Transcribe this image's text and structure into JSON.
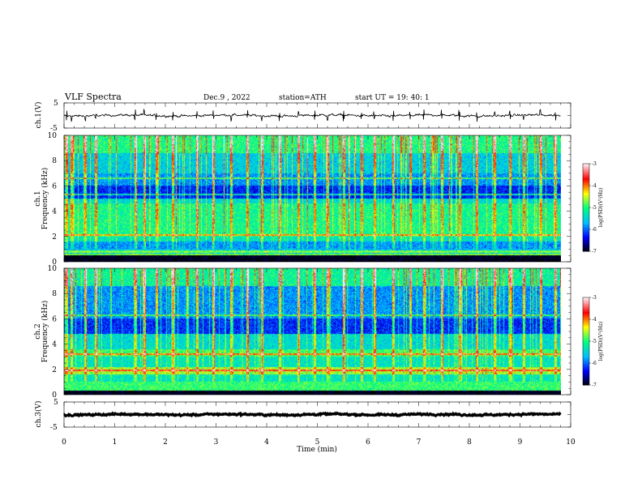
{
  "header": {
    "title": "VLF  Spectra",
    "date": "Dec.9  , 2022",
    "station": "station=ATH",
    "start": "start  UT  =    19: 40: 1"
  },
  "colors": {
    "axis": "#000000",
    "background": "#ffffff",
    "waveform": "#000000"
  },
  "chart_data": [
    {
      "type": "line",
      "panel": "ch1-waveform",
      "ylabel": "ch.1(V)",
      "ylim": [
        -5,
        5
      ],
      "yticks": [
        "5",
        "-5"
      ],
      "xlim": [
        0,
        10
      ],
      "x_end": 9.8,
      "baseline": 0,
      "amplitude_typical": 0.4,
      "spike_times": [
        0.05,
        0.15,
        0.42,
        0.62,
        1.4,
        1.58,
        1.82,
        2.15,
        2.62,
        2.95,
        3.3,
        3.62,
        3.9,
        4.25,
        4.63,
        4.95,
        5.2,
        5.52,
        5.87,
        6.12,
        6.5,
        6.83,
        7.1,
        7.45,
        7.8,
        8.15,
        8.5,
        8.8,
        9.07,
        9.4,
        9.7
      ]
    },
    {
      "type": "heatmap",
      "panel": "ch1-spectrogram",
      "ylabel": "ch.1\nFrequency (kHz)",
      "ylim": [
        0,
        10
      ],
      "yticks": [
        "0",
        "2",
        "4",
        "6",
        "8",
        "10"
      ],
      "xlim": [
        0,
        10
      ],
      "x_end": 9.8,
      "colorbar": {
        "label": "log(PSD)(V²/Hz)",
        "range": [
          -7,
          -3
        ],
        "ticks": [
          "-3",
          "-4",
          "-5",
          "-6",
          "-7"
        ],
        "colors": [
          "#000000",
          "#0000ff",
          "#00c0ff",
          "#00ff80",
          "#ffff00",
          "#ff0000",
          "#ffe8f0"
        ]
      },
      "bands": [
        {
          "f": [
            0,
            0.5
          ],
          "level": -7.0
        },
        {
          "f": [
            0.5,
            1.0
          ],
          "level": -5.6
        },
        {
          "f": [
            1.0,
            1.6
          ],
          "level": -5.8
        },
        {
          "f": [
            1.6,
            2.0
          ],
          "level": -5.3
        },
        {
          "f": [
            2.0,
            4.6
          ],
          "level": -5.05
        },
        {
          "f": [
            4.6,
            5.0
          ],
          "level": -5.4
        },
        {
          "f": [
            5.0,
            6.0
          ],
          "level": -6.25
        },
        {
          "f": [
            6.0,
            7.0
          ],
          "level": -5.8
        },
        {
          "f": [
            7.0,
            8.6
          ],
          "level": -5.5
        },
        {
          "f": [
            8.6,
            10.0
          ],
          "level": -5.0
        }
      ],
      "tones_kHz": [
        0.6,
        0.8,
        2.1,
        5.3,
        6.6
      ],
      "sferic_times": [
        0.05,
        0.15,
        0.42,
        0.62,
        1.4,
        1.58,
        1.82,
        2.15,
        2.62,
        2.95,
        3.3,
        3.62,
        3.9,
        4.25,
        4.63,
        4.95,
        5.2,
        5.52,
        5.87,
        6.12,
        6.5,
        6.83,
        7.1,
        7.45,
        7.8,
        8.15,
        8.5,
        8.8,
        9.07,
        9.4,
        9.7
      ]
    },
    {
      "type": "heatmap",
      "panel": "ch2-spectrogram",
      "ylabel": "ch.2\nFrequency (kHz)",
      "ylim": [
        0,
        10
      ],
      "yticks": [
        "0",
        "2",
        "4",
        "6",
        "8",
        "10"
      ],
      "xlim": [
        0,
        10
      ],
      "x_end": 9.8,
      "colorbar": {
        "label": "log(PSD)(V²/Hz)",
        "range": [
          -7,
          -3
        ],
        "ticks": [
          "-3",
          "-4",
          "-5",
          "-6",
          "-7"
        ],
        "colors": [
          "#000000",
          "#0000ff",
          "#00c0ff",
          "#00ff80",
          "#ffff00",
          "#ff0000",
          "#ffe8f0"
        ]
      },
      "bands": [
        {
          "f": [
            0,
            0.3
          ],
          "level": -7.0
        },
        {
          "f": [
            0.3,
            1.0
          ],
          "level": -4.9
        },
        {
          "f": [
            1.0,
            1.6
          ],
          "level": -5.3
        },
        {
          "f": [
            1.6,
            2.2
          ],
          "level": -4.6
        },
        {
          "f": [
            2.2,
            3.0
          ],
          "level": -5.3
        },
        {
          "f": [
            3.0,
            3.6
          ],
          "level": -4.9
        },
        {
          "f": [
            3.6,
            4.8
          ],
          "level": -5.4
        },
        {
          "f": [
            4.8,
            6.0
          ],
          "level": -6.2
        },
        {
          "f": [
            6.0,
            8.6
          ],
          "level": -5.8
        },
        {
          "f": [
            8.6,
            10.0
          ],
          "level": -5.1
        }
      ],
      "tones_kHz": [
        1.9,
        3.2,
        6.3
      ],
      "sferic_times": [
        0.05,
        0.15,
        0.42,
        0.62,
        1.4,
        1.58,
        1.82,
        2.15,
        2.62,
        2.95,
        3.3,
        3.62,
        3.9,
        4.25,
        4.63,
        4.95,
        5.2,
        5.52,
        5.87,
        6.12,
        6.5,
        6.83,
        7.1,
        7.45,
        7.8,
        8.15,
        8.5,
        8.8,
        9.07,
        9.4,
        9.7
      ]
    },
    {
      "type": "line",
      "panel": "ch3-waveform",
      "ylabel": "ch.3(V)",
      "ylim": [
        -5,
        5
      ],
      "yticks": [
        "5",
        "-5"
      ],
      "xlim": [
        0,
        10
      ],
      "x_end": 9.8,
      "baseline": 0,
      "amplitude_typical": 0.3,
      "spike_times": []
    }
  ],
  "xaxis": {
    "label": "Time  (min)",
    "ticks": [
      "0",
      "1",
      "2",
      "3",
      "4",
      "5",
      "6",
      "7",
      "8",
      "9",
      "10"
    ]
  }
}
